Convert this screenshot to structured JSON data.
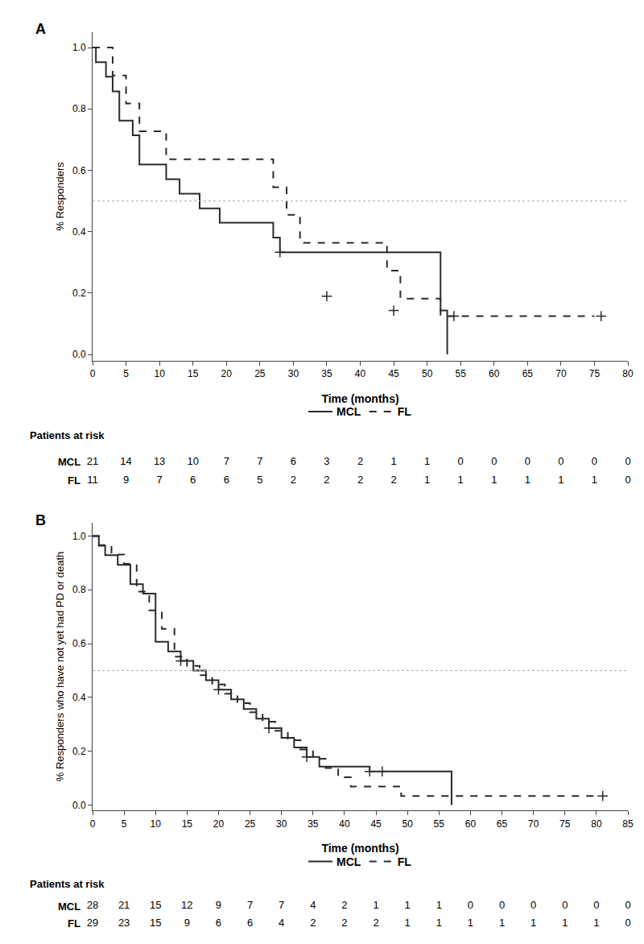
{
  "chart_data": [
    {
      "type": "line",
      "title": "A",
      "xlabel": "Time (months)",
      "ylabel": "% Responders",
      "xlim": [
        0,
        80
      ],
      "ylim": [
        -0.02,
        1.05
      ],
      "xticks": [
        0,
        5,
        10,
        15,
        20,
        25,
        30,
        35,
        40,
        45,
        50,
        55,
        60,
        65,
        70,
        75,
        80
      ],
      "yticks": [
        {
          "value": 0.0,
          "label": "0.0"
        },
        0.2,
        0.4,
        0.6,
        0.8,
        {
          "value": 1.0,
          "label": "1.0"
        }
      ],
      "grid": false,
      "legend": "bottom",
      "hline": 0.5,
      "series": [
        {
          "name": "MCL",
          "color": "#2b2b2b",
          "line_style": "solid",
          "marker": "cross",
          "x": [
            0,
            0.5,
            2,
            3,
            4,
            6,
            7,
            11,
            13,
            16,
            19,
            27,
            28,
            52,
            53
          ],
          "values": [
            1.0,
            0.952,
            0.905,
            0.857,
            0.762,
            0.714,
            0.619,
            0.571,
            0.524,
            0.476,
            0.429,
            0.381,
            0.333,
            0.143,
            0.0
          ],
          "censor_x": [
            28,
            35,
            45
          ],
          "censor_values": [
            0.333,
            0.19,
            0.143
          ]
        },
        {
          "name": "FL",
          "color": "#2b2b2b",
          "line_style": "dashed",
          "marker": "cross",
          "x": [
            0,
            1,
            3,
            5,
            7,
            11,
            15,
            27,
            29,
            31,
            33,
            44,
            46,
            52,
            54,
            75
          ],
          "values": [
            1.0,
            1.0,
            0.909,
            0.818,
            0.727,
            0.636,
            0.636,
            0.545,
            0.455,
            0.364,
            0.364,
            0.273,
            0.182,
            0.125,
            0.125,
            0.125
          ],
          "censor_x": [
            54,
            76
          ],
          "censor_values": [
            0.125,
            0.125
          ]
        }
      ],
      "risk_table": {
        "title": "Patients at risk",
        "rows": [
          {
            "label": "MCL",
            "x": [
              0,
              5,
              10,
              15,
              20,
              25,
              30,
              35,
              40,
              45,
              50,
              55,
              60,
              65,
              70,
              75,
              80
            ],
            "counts": [
              21,
              14,
              13,
              10,
              7,
              7,
              6,
              3,
              2,
              1,
              1,
              0,
              0,
              0,
              0,
              0,
              0
            ]
          },
          {
            "label": "FL",
            "x": [
              0,
              5,
              10,
              15,
              20,
              25,
              30,
              35,
              40,
              45,
              50,
              55,
              60,
              65,
              70,
              75,
              80
            ],
            "counts": [
              11,
              9,
              7,
              6,
              6,
              5,
              2,
              2,
              2,
              2,
              1,
              1,
              1,
              1,
              1,
              1,
              0
            ]
          }
        ]
      }
    },
    {
      "type": "line",
      "title": "B",
      "xlabel": "Time (months)",
      "ylabel": "% Responders who have not yet had PD or death",
      "xlim": [
        0,
        85
      ],
      "ylim": [
        -0.02,
        1.05
      ],
      "xticks": [
        0,
        5,
        10,
        15,
        20,
        25,
        30,
        35,
        40,
        45,
        50,
        55,
        60,
        65,
        70,
        75,
        80,
        85
      ],
      "yticks": [
        {
          "value": 0.0,
          "label": "0.0"
        },
        0.2,
        0.4,
        0.6,
        0.8,
        {
          "value": 1.0,
          "label": "1.0"
        }
      ],
      "grid": false,
      "legend": "bottom",
      "hline": 0.5,
      "series": [
        {
          "name": "MCL",
          "color": "#2b2b2b",
          "line_style": "solid",
          "marker": "cross",
          "x": [
            0,
            1,
            2,
            4,
            6,
            8,
            10,
            12,
            14,
            16,
            18,
            20,
            22,
            24,
            26,
            28,
            30,
            32,
            34,
            36,
            44,
            46,
            56,
            57
          ],
          "values": [
            1.0,
            0.964,
            0.929,
            0.893,
            0.821,
            0.786,
            0.607,
            0.571,
            0.536,
            0.5,
            0.464,
            0.429,
            0.393,
            0.357,
            0.321,
            0.286,
            0.25,
            0.214,
            0.179,
            0.143,
            0.125,
            0.125,
            0.125,
            0.0
          ],
          "censor_x": [
            14,
            20,
            28,
            34,
            44,
            46
          ],
          "censor_values": [
            0.536,
            0.429,
            0.286,
            0.179,
            0.125,
            0.125
          ]
        },
        {
          "name": "FL",
          "color": "#2b2b2b",
          "line_style": "dashed",
          "marker": "cross",
          "x": [
            0,
            1,
            3,
            5,
            7,
            9,
            11,
            13,
            15,
            17,
            19,
            21,
            23,
            25,
            27,
            29,
            31,
            33,
            35,
            37,
            39,
            41,
            45,
            49,
            55,
            56,
            80
          ],
          "values": [
            1.0,
            0.966,
            0.931,
            0.897,
            0.793,
            0.724,
            0.655,
            0.552,
            0.517,
            0.483,
            0.448,
            0.414,
            0.379,
            0.345,
            0.31,
            0.276,
            0.241,
            0.207,
            0.172,
            0.138,
            0.103,
            0.069,
            0.069,
            0.034,
            0.034,
            0.034,
            0.034
          ],
          "censor_x": [
            81
          ],
          "censor_values": [
            0.034
          ]
        }
      ],
      "risk_table": {
        "title": "Patients at risk",
        "rows": [
          {
            "label": "MCL",
            "x": [
              0,
              5,
              10,
              15,
              20,
              25,
              30,
              35,
              40,
              45,
              50,
              55,
              60,
              65,
              70,
              75,
              80,
              85
            ],
            "counts": [
              28,
              21,
              15,
              12,
              9,
              7,
              7,
              4,
              2,
              1,
              1,
              1,
              0,
              0,
              0,
              0,
              0,
              0
            ]
          },
          {
            "label": "FL",
            "x": [
              0,
              5,
              10,
              15,
              20,
              25,
              30,
              35,
              40,
              45,
              50,
              55,
              60,
              65,
              70,
              75,
              80,
              85
            ],
            "counts": [
              29,
              23,
              15,
              9,
              6,
              6,
              4,
              2,
              2,
              2,
              1,
              1,
              1,
              1,
              1,
              1,
              1,
              0
            ]
          }
        ]
      }
    }
  ]
}
